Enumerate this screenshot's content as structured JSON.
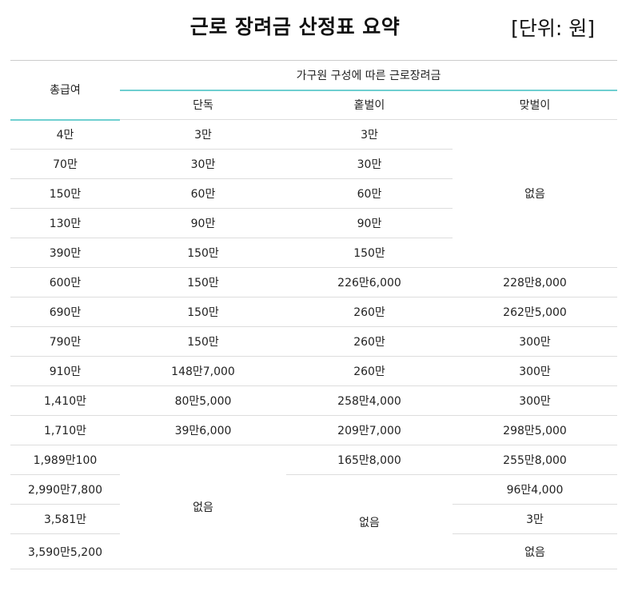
{
  "title": "근로 장려금 산정표 요약",
  "unit": "[단위: 원]",
  "table": {
    "col_total": "총급여",
    "group_header": "가구원 구성에 따른 근로장려금",
    "sub_headers": [
      "단독",
      "홑벌이",
      "맞벌이"
    ],
    "rows": [
      {
        "total": "4만",
        "single": "3만",
        "one": "3만"
      },
      {
        "total": "70만",
        "single": "30만",
        "one": "30만"
      },
      {
        "total": "150만",
        "single": "60만",
        "one": "60만"
      },
      {
        "total": "130만",
        "single": "90만",
        "one": "90만"
      },
      {
        "total": "390만",
        "single": "150만",
        "one": "150만"
      },
      {
        "total": "600만",
        "single": "150만",
        "one": "226만6,000",
        "dual": "228만8,000"
      },
      {
        "total": "690만",
        "single": "150만",
        "one": "260만",
        "dual": "262만5,000"
      },
      {
        "total": "790만",
        "single": "150만",
        "one": "260만",
        "dual": "300만"
      },
      {
        "total": "910만",
        "single": "148만7,000",
        "one": "260만",
        "dual": "300만"
      },
      {
        "total": "1,410만",
        "single": "80만5,000",
        "one": "258만4,000",
        "dual": "300만"
      },
      {
        "total": "1,710만",
        "single": "39만6,000",
        "one": "209만7,000",
        "dual": "298만5,000"
      },
      {
        "total": "1,989만100",
        "one": "165만8,000",
        "dual": "255만8,000"
      },
      {
        "total": "2,990만7,800",
        "dual": "96만4,000"
      },
      {
        "total": "3,581만",
        "dual": "3만"
      },
      {
        "total": "3,590만5,200",
        "dual": "없음"
      }
    ],
    "merged_none": {
      "dual_top": "없음",
      "single_bottom": "없음",
      "one_bottom": "없음"
    }
  }
}
